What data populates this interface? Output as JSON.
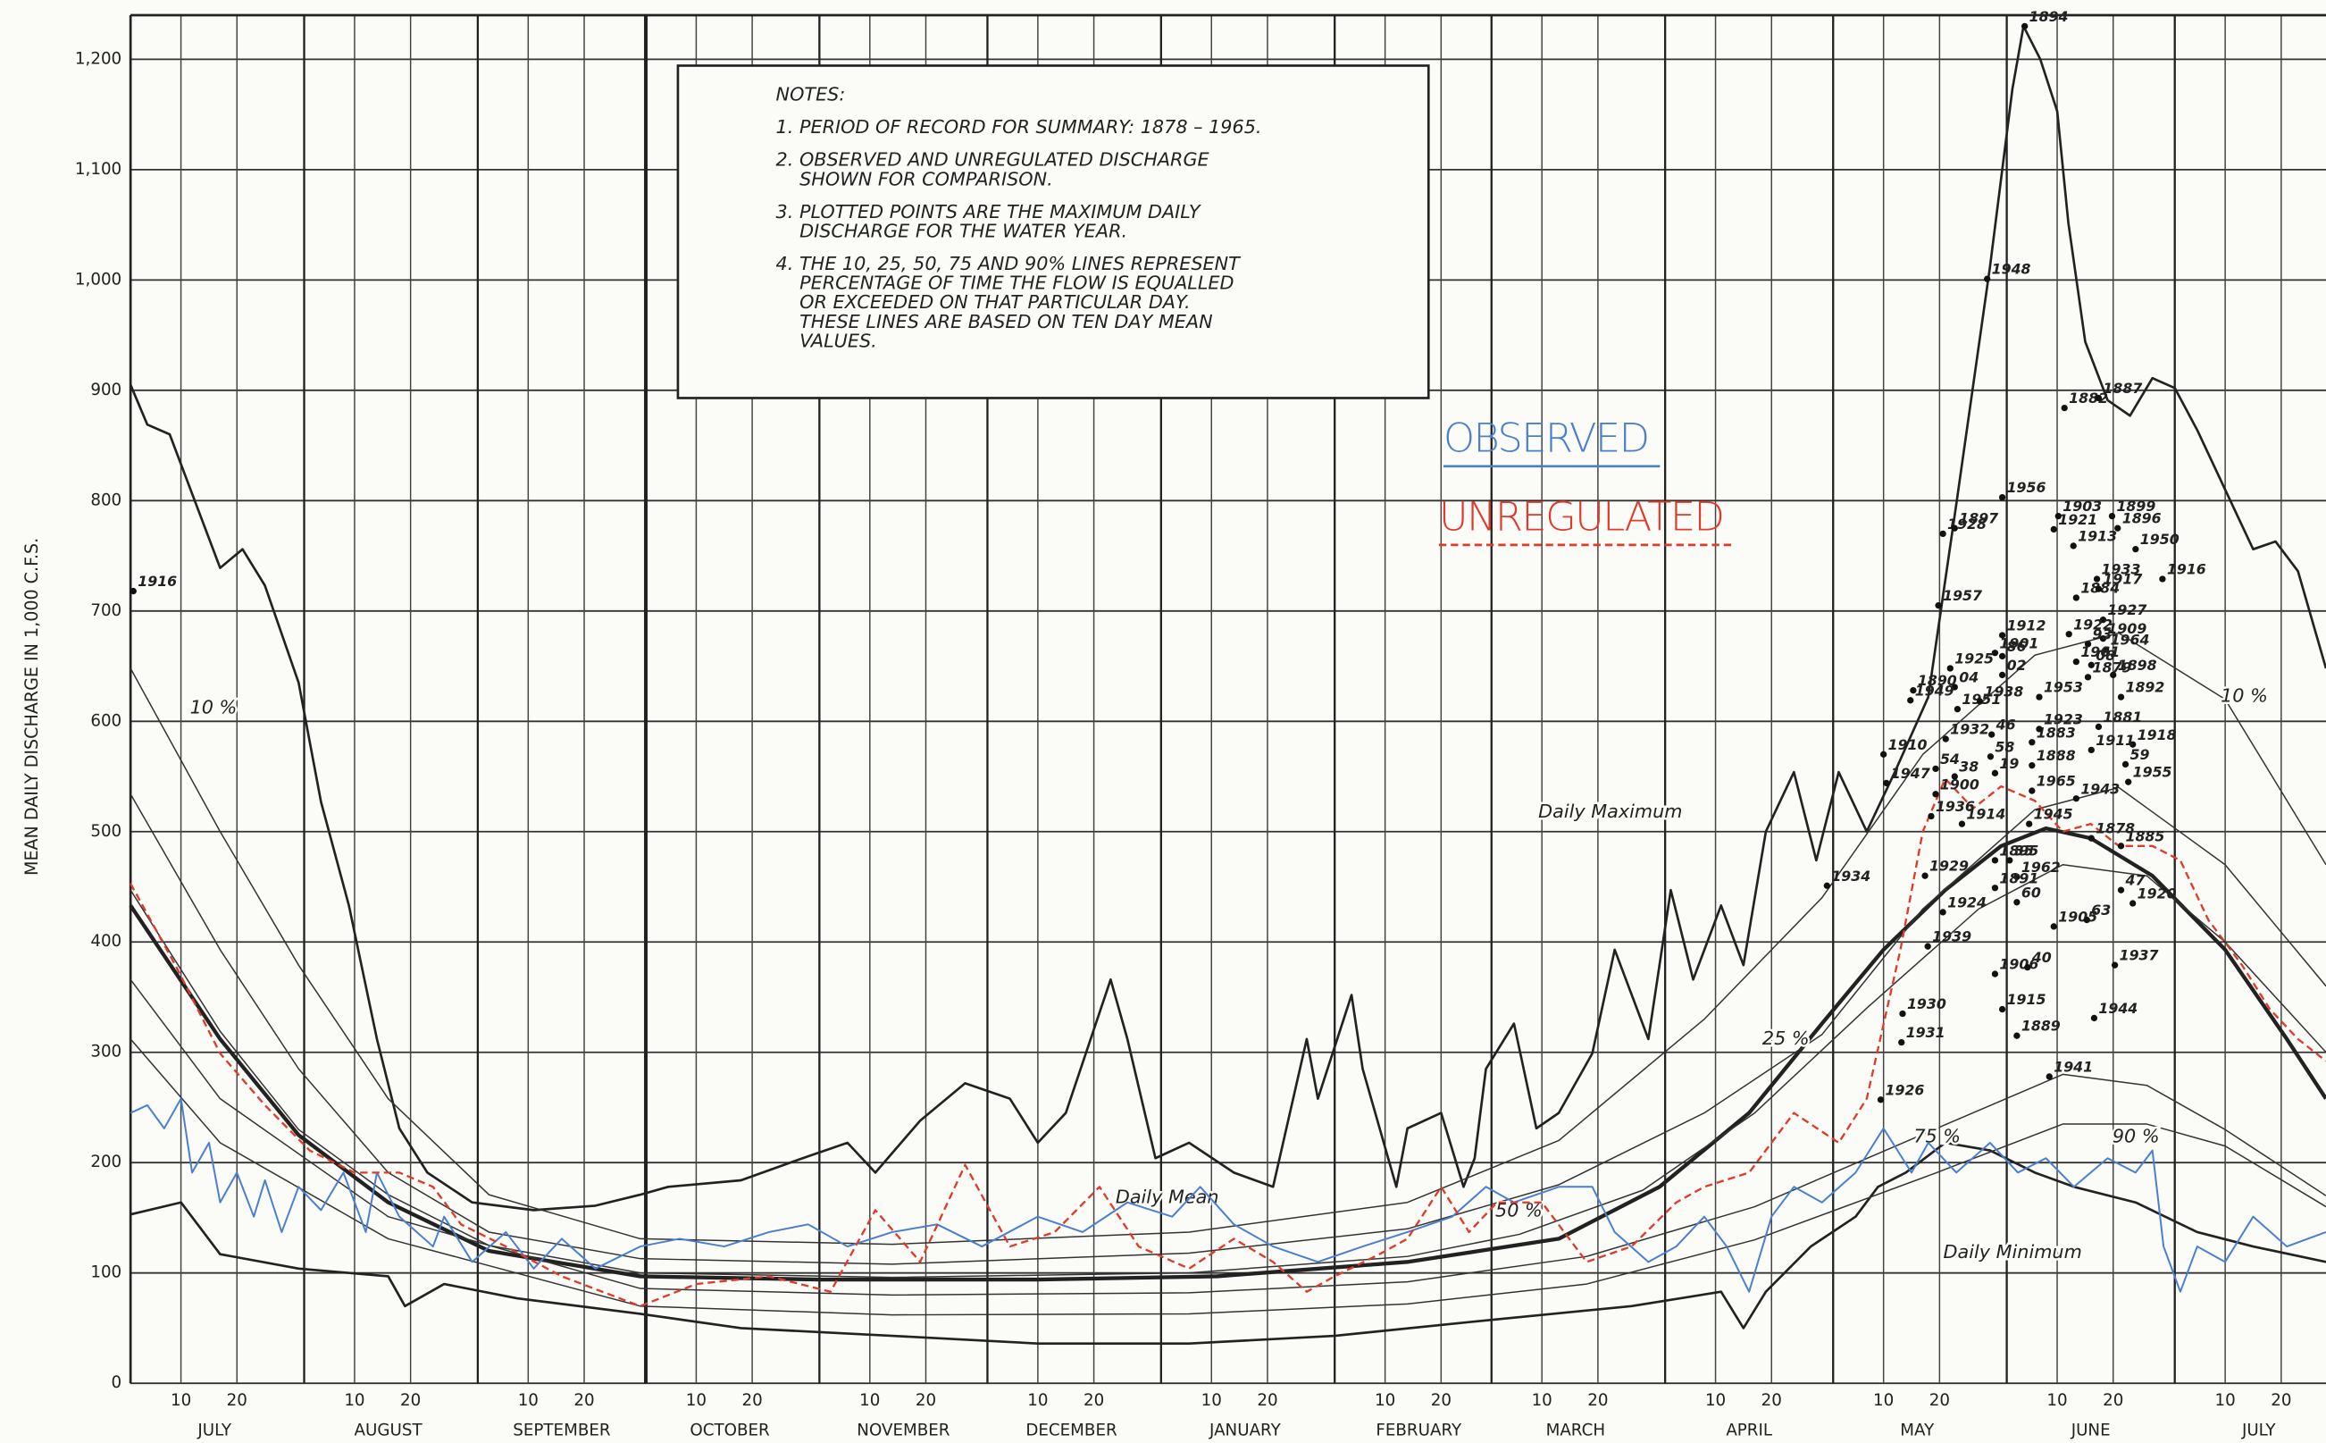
{
  "chart_data": {
    "type": "line",
    "y_label": "MEAN DAILY DISCHARGE IN 1,000 C.F.S.",
    "xlim": [
      0,
      392
    ],
    "ylim": [
      0,
      1240
    ],
    "yticks": [
      0,
      100,
      200,
      300,
      400,
      500,
      600,
      700,
      800,
      900,
      {
        "value": 1000,
        "label": "1,000"
      },
      {
        "value": 1100,
        "label": "1,100"
      },
      {
        "value": 1200,
        "label": "1,200"
      }
    ],
    "months": [
      {
        "value": 0,
        "label": "JULY"
      },
      {
        "value": 31,
        "label": "AUGUST"
      },
      {
        "value": 62,
        "label": "SEPTEMBER"
      },
      {
        "value": 92,
        "label": "OCTOBER"
      },
      {
        "value": 123,
        "label": "NOVEMBER"
      },
      {
        "value": 153,
        "label": "DECEMBER"
      },
      {
        "value": 184,
        "label": "JANUARY"
      },
      {
        "value": 215,
        "label": "FEBRUARY"
      },
      {
        "value": 243,
        "label": "MARCH"
      },
      {
        "value": 274,
        "label": "APRIL"
      },
      {
        "value": 304,
        "label": "MAY"
      },
      {
        "value": 335,
        "label": "JUNE"
      },
      {
        "value": 365,
        "label": "JULY"
      }
    ],
    "xticks": [
      {
        "value": 9,
        "label": "10"
      },
      {
        "value": 19,
        "label": "20"
      },
      {
        "value": 40,
        "label": "10"
      },
      {
        "value": 50,
        "label": "20"
      },
      {
        "value": 71,
        "label": "10"
      },
      {
        "value": 81,
        "label": "20"
      },
      {
        "value": 101,
        "label": "10"
      },
      {
        "value": 111,
        "label": "20"
      },
      {
        "value": 132,
        "label": "10"
      },
      {
        "value": 142,
        "label": "20"
      },
      {
        "value": 162,
        "label": "10"
      },
      {
        "value": 172,
        "label": "20"
      },
      {
        "value": 193,
        "label": "10"
      },
      {
        "value": 203,
        "label": "20"
      },
      {
        "value": 224,
        "label": "10"
      },
      {
        "value": 234,
        "label": "20"
      },
      {
        "value": 252,
        "label": "10"
      },
      {
        "value": 262,
        "label": "20"
      },
      {
        "value": 283,
        "label": "10"
      },
      {
        "value": 293,
        "label": "20"
      },
      {
        "value": 313,
        "label": "10"
      },
      {
        "value": 323,
        "label": "20"
      },
      {
        "value": 344,
        "label": "10"
      },
      {
        "value": 354,
        "label": "20"
      },
      {
        "value": 374,
        "label": "10"
      },
      {
        "value": 384,
        "label": "20"
      }
    ],
    "grid": true,
    "notes": {
      "title": "NOTES:",
      "items": [
        [
          "1. PERIOD OF RECORD FOR SUMMARY:  1878 – 1965."
        ],
        [
          "2.  OBSERVED AND UNREGULATED DISCHARGE",
          "SHOWN FOR COMPARISON."
        ],
        [
          "3. PLOTTED POINTS ARE THE MAXIMUM DAILY",
          "DISCHARGE FOR THE WATER YEAR."
        ],
        [
          "4. THE 10, 25, 50, 75 AND 90% LINES REPRESENT",
          "PERCENTAGE OF TIME THE FLOW IS EQUALLED",
          "OR EXCEEDED ON THAT PARTICULAR DAY.",
          "THESE LINES ARE BASED ON TEN DAY MEAN",
          "VALUES."
        ]
      ]
    },
    "series": [
      {
        "name": "Daily Maximum",
        "color": "#222222",
        "width": 1.6,
        "x": [
          0,
          3,
          7,
          16,
          20,
          24,
          30,
          34,
          39,
          44,
          48,
          53,
          61,
          72,
          83,
          91,
          96,
          109,
          120,
          128,
          133,
          141,
          149,
          157,
          162,
          167,
          175,
          178,
          183,
          189,
          197,
          204,
          210,
          212,
          218,
          220,
          226,
          228,
          234,
          238,
          240,
          242,
          247,
          251,
          255,
          261,
          265,
          271,
          275,
          279,
          284,
          288,
          292,
          297,
          301,
          305,
          310,
          315,
          321,
          326,
          332,
          336,
          338,
          341,
          344,
          346,
          349,
          353,
          357,
          361,
          365,
          369,
          374,
          379,
          383,
          387,
          392
        ],
        "values": [
          905,
          869,
          860,
          739,
          756,
          723,
          635,
          527,
          433,
          312,
          231,
          191,
          164,
          157,
          161,
          171,
          178,
          184,
          204,
          218,
          191,
          238,
          272,
          258,
          218,
          245,
          366,
          312,
          204,
          218,
          191,
          178,
          312,
          258,
          352,
          285,
          178,
          231,
          245,
          178,
          204,
          285,
          326,
          231,
          245,
          299,
          393,
          312,
          447,
          366,
          433,
          379,
          500,
          554,
          474,
          554,
          500,
          554,
          622,
          797,
          1012,
          1173,
          1230,
          1200,
          1153,
          1052,
          944,
          891,
          877,
          911,
          902,
          864,
          810,
          756,
          763,
          736,
          648
        ]
      },
      {
        "name": "Daily Minimum",
        "color": "#222222",
        "width": 1.6,
        "x": [
          0,
          9,
          16,
          30,
          46,
          49,
          56,
          69,
          91,
          109,
          136,
          162,
          189,
          215,
          242,
          268,
          284,
          288,
          292,
          300,
          308,
          312,
          317,
          324,
          332,
          340,
          347,
          358,
          369,
          379,
          392
        ],
        "values": [
          153,
          164,
          117,
          104,
          97,
          70,
          90,
          77,
          63,
          50,
          43,
          36,
          36,
          43,
          57,
          70,
          83,
          50,
          83,
          124,
          151,
          178,
          191,
          218,
          211,
          191,
          178,
          164,
          137,
          124,
          110
        ]
      },
      {
        "name": "Daily Mean",
        "color": "#222222",
        "width": 2.6,
        "x": [
          0,
          16,
          30,
          46,
          64,
          91,
          123,
          162,
          194,
          228,
          255,
          273,
          289,
          302,
          313,
          324,
          334,
          342,
          350,
          361,
          374,
          385,
          392
        ],
        "values": [
          433,
          312,
          225,
          164,
          120,
          97,
          94,
          94,
          97,
          110,
          131,
          178,
          245,
          326,
          393,
          447,
          487,
          503,
          494,
          460,
          393,
          312,
          258
        ]
      },
      {
        "name": "10 %",
        "color": "#333333",
        "width": 0.9,
        "x": [
          0,
          16,
          30,
          46,
          64,
          91,
          136,
          189,
          228,
          255,
          281,
          302,
          320,
          340,
          355,
          374,
          392
        ],
        "values": [
          648,
          500,
          379,
          258,
          171,
          131,
          126,
          137,
          164,
          220,
          330,
          440,
          570,
          660,
          680,
          620,
          470
        ]
      },
      {
        "name": "25 %",
        "color": "#333333",
        "width": 0.9,
        "x": [
          0,
          16,
          30,
          46,
          64,
          91,
          136,
          189,
          228,
          255,
          281,
          302,
          320,
          340,
          355,
          374,
          392
        ],
        "values": [
          534,
          393,
          285,
          191,
          137,
          113,
          108,
          118,
          140,
          180,
          245,
          316,
          430,
          520,
          540,
          470,
          360
        ]
      },
      {
        "name": "50 %",
        "color": "#333333",
        "width": 0.9,
        "x": [
          0,
          16,
          30,
          46,
          64,
          91,
          136,
          189,
          228,
          248,
          270,
          290,
          310,
          330,
          345,
          360,
          374,
          392
        ],
        "values": [
          447,
          319,
          230,
          171,
          125,
          100,
          96,
          100,
          115,
          135,
          175,
          245,
          340,
          430,
          470,
          460,
          400,
          300
        ]
      },
      {
        "name": "75 %",
        "color": "#333333",
        "width": 0.9,
        "x": [
          0,
          16,
          46,
          91,
          136,
          189,
          228,
          260,
          290,
          322,
          345,
          360,
          374,
          392
        ],
        "values": [
          366,
          258,
          151,
          86,
          80,
          82,
          92,
          115,
          160,
          230,
          280,
          270,
          230,
          170
        ]
      },
      {
        "name": "90 %",
        "color": "#333333",
        "width": 0.9,
        "x": [
          0,
          16,
          46,
          91,
          136,
          189,
          228,
          260,
          290,
          322,
          345,
          360,
          374,
          392
        ],
        "values": [
          312,
          218,
          131,
          70,
          62,
          63,
          72,
          90,
          130,
          190,
          235,
          235,
          215,
          160
        ]
      },
      {
        "name": "OBSERVED",
        "color": "#4a7fd0",
        "width": 1.2,
        "legend": true,
        "x": [
          0,
          3,
          6,
          9,
          11,
          14,
          16,
          19,
          22,
          24,
          27,
          30,
          34,
          38,
          42,
          44,
          48,
          54,
          56,
          61,
          67,
          72,
          77,
          83,
          91,
          98,
          106,
          114,
          121,
          128,
          136,
          144,
          152,
          162,
          170,
          178,
          186,
          191,
          197,
          204,
          212,
          220,
          228,
          236,
          242,
          247,
          255,
          261,
          265,
          271,
          276,
          281,
          285,
          289,
          293,
          297,
          302,
          308,
          313,
          318,
          321,
          326,
          332,
          337,
          342,
          347,
          353,
          358,
          361,
          363,
          366,
          369,
          374,
          379,
          385,
          392
        ],
        "values": [
          245,
          252,
          231,
          258,
          191,
          218,
          164,
          191,
          151,
          184,
          137,
          178,
          157,
          191,
          137,
          191,
          151,
          124,
          151,
          110,
          137,
          104,
          131,
          104,
          124,
          131,
          124,
          137,
          144,
          124,
          137,
          144,
          124,
          151,
          137,
          164,
          151,
          178,
          144,
          124,
          110,
          124,
          137,
          151,
          178,
          164,
          178,
          178,
          137,
          110,
          124,
          151,
          124,
          83,
          151,
          178,
          164,
          191,
          231,
          191,
          218,
          191,
          218,
          191,
          204,
          178,
          204,
          191,
          211,
          124,
          83,
          124,
          110,
          151,
          124,
          137
        ]
      },
      {
        "name": "UNREGULATED",
        "color": "#e03a2a",
        "width": 1.4,
        "dash": true,
        "legend": true,
        "x": [
          0,
          8,
          16,
          24,
          32,
          40,
          48,
          54,
          59,
          67,
          77,
          91,
          101,
          114,
          125,
          133,
          141,
          149,
          157,
          165,
          173,
          180,
          189,
          197,
          204,
          210,
          215,
          223,
          228,
          234,
          239,
          244,
          252,
          260,
          268,
          276,
          281,
          289,
          297,
          305,
          310,
          316,
          320,
          324,
          329,
          334,
          340,
          345,
          350,
          355,
          361,
          366,
          371,
          377,
          382,
          387,
          392
        ],
        "values": [
          453,
          379,
          299,
          252,
          211,
          191,
          191,
          178,
          144,
          124,
          97,
          70,
          90,
          97,
          83,
          157,
          110,
          198,
          124,
          137,
          178,
          124,
          104,
          131,
          110,
          83,
          97,
          117,
          131,
          178,
          137,
          164,
          164,
          110,
          124,
          164,
          178,
          191,
          245,
          218,
          258,
          393,
          500,
          548,
          521,
          541,
          528,
          500,
          507,
          487,
          487,
          474,
          420,
          379,
          339,
          312,
          292
        ]
      }
    ],
    "points": {
      "labels": [
        "1916",
        "1894",
        "1948",
        "1882",
        "1887",
        "1956",
        "1903",
        "1899",
        "1921",
        "1913",
        "1896",
        "1950",
        "1928",
        "1897",
        "1957",
        "1933",
        "1884",
        "1917",
        "1916",
        "1927",
        "1909",
        "1964",
        "1912",
        "1922",
        "1901",
        "86",
        "93",
        "02",
        "1961",
        "08",
        "1879",
        "1898",
        "1925",
        "04",
        "1890",
        "1949",
        "1951",
        "1938",
        "1953",
        "1892",
        "1910",
        "1932",
        "46",
        "1883",
        "1923",
        "1881",
        "1918",
        "1911",
        "59",
        "58",
        "54",
        "1888",
        "1947",
        "1900",
        "38",
        "19",
        "1955",
        "1965",
        "1943",
        "1936",
        "1914",
        "1945",
        "1878",
        "1885",
        "1934",
        "1929",
        "1895",
        "35",
        "1962",
        "1891",
        "60",
        "47",
        "1920",
        "1924",
        "1905",
        "63",
        "1939",
        "1906",
        "40",
        "1937",
        "1930",
        "1915",
        "1944",
        "1931",
        "1889",
        "1941",
        "1926"
      ],
      "x": [
        0.5,
        338.2,
        331.5,
        345.3,
        351.4,
        334.2,
        344.2,
        353.8,
        343.4,
        346.9,
        354.8,
        358,
        323.6,
        325.7,
        322.8,
        351.1,
        347.4,
        351.4,
        362.8,
        352.2,
        352.2,
        352.7,
        334.2,
        346.1,
        332.9,
        334.2,
        349.5,
        334.2,
        347.4,
        350.1,
        349.5,
        354,
        324.9,
        325.7,
        318.3,
        317.8,
        326.2,
        330.2,
        340.8,
        355.4,
        313,
        324.1,
        332.3,
        339.5,
        340.8,
        351.4,
        357.5,
        350.1,
        356.2,
        332.1,
        322.3,
        339.5,
        313.5,
        322.3,
        325.7,
        332.9,
        356.7,
        339.5,
        347.4,
        321.5,
        327,
        339,
        350.1,
        355.4,
        302.9,
        320.4,
        332.9,
        335.5,
        336.8,
        332.9,
        336.8,
        355.4,
        357.5,
        323.6,
        343.4,
        349.3,
        320.9,
        332.9,
        338.7,
        354.3,
        316.4,
        334.2,
        350.6,
        316.2,
        336.8,
        342.6,
        312.5
      ],
      "values": [
        718,
        1230,
        1001,
        884,
        893,
        803,
        786,
        786,
        774,
        759,
        775,
        756,
        770,
        775,
        705,
        729,
        712,
        720,
        729,
        692,
        675,
        665,
        678,
        679,
        662,
        659,
        670,
        642,
        654,
        651,
        640,
        642,
        648,
        631,
        628,
        619,
        611,
        618,
        622,
        622,
        570,
        584,
        588,
        581,
        593,
        595,
        579,
        574,
        561,
        568,
        557,
        560,
        544,
        534,
        550,
        553,
        545,
        537,
        530,
        514,
        507,
        507,
        494,
        487,
        451,
        460,
        474,
        474,
        459,
        449,
        436,
        447,
        435,
        427,
        414,
        420,
        396,
        371,
        377,
        379,
        335,
        339,
        331,
        309,
        315,
        278,
        257
      ]
    }
  }
}
